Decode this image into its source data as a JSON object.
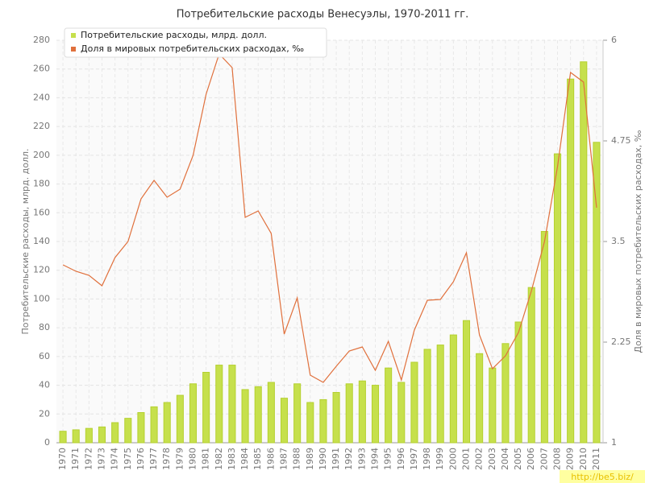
{
  "chart_data": {
    "type": "bar",
    "title": "Потребительские расходы Венесуэлы, 1970-2011 гг.",
    "y_label": "Потребительские расходы, млрд. долл.",
    "y2_label": "Доля в мировых потребительских расходах, ‰",
    "watermark": "http://be5.biz/",
    "categories": [
      "1970",
      "1971",
      "1972",
      "1973",
      "1974",
      "1975",
      "1976",
      "1977",
      "1978",
      "1979",
      "1980",
      "1981",
      "1982",
      "1983",
      "1984",
      "1985",
      "1986",
      "1987",
      "1988",
      "1989",
      "1990",
      "1991",
      "1992",
      "1993",
      "1994",
      "1995",
      "1996",
      "1997",
      "1998",
      "1999",
      "2000",
      "2001",
      "2002",
      "2003",
      "2004",
      "2005",
      "2006",
      "2007",
      "2008",
      "2009",
      "2010",
      "2011"
    ],
    "series": [
      {
        "name": "Потребительские расходы, млрд. долл.",
        "type": "bar",
        "color": "#c6e04c",
        "values": [
          8,
          9,
          10,
          11,
          14,
          17,
          21,
          25,
          28,
          33,
          41,
          49,
          54,
          54,
          37,
          39,
          42,
          31,
          41,
          28,
          30,
          35,
          41,
          43,
          40,
          52,
          42,
          56,
          65,
          68,
          75,
          85,
          62,
          52,
          69,
          84,
          108,
          147,
          201,
          253,
          265,
          209
        ]
      },
      {
        "name": "Доля в мировых потребительских расходах, ‰",
        "type": "line",
        "color": "#e0703c",
        "axis": "y2",
        "values": [
          3.21,
          3.13,
          3.08,
          2.95,
          3.3,
          3.5,
          4.03,
          4.26,
          4.05,
          4.15,
          4.57,
          5.33,
          5.83,
          5.66,
          3.8,
          3.88,
          3.6,
          2.35,
          2.8,
          1.84,
          1.75,
          1.95,
          2.14,
          2.19,
          1.9,
          2.26,
          1.78,
          2.4,
          2.77,
          2.78,
          3.0,
          3.36,
          2.34,
          1.92,
          2.08,
          2.37,
          2.89,
          3.5,
          4.43,
          5.6,
          5.48,
          3.92
        ]
      }
    ],
    "ylim": [
      0,
      280
    ],
    "yticks": [
      0,
      20,
      40,
      60,
      80,
      100,
      120,
      140,
      160,
      180,
      200,
      220,
      240,
      260,
      280
    ],
    "y2lim": [
      1,
      6
    ],
    "y2ticks": [
      1,
      2.25,
      3.5,
      4.75,
      6
    ],
    "grid": true,
    "legend": "top-left"
  }
}
